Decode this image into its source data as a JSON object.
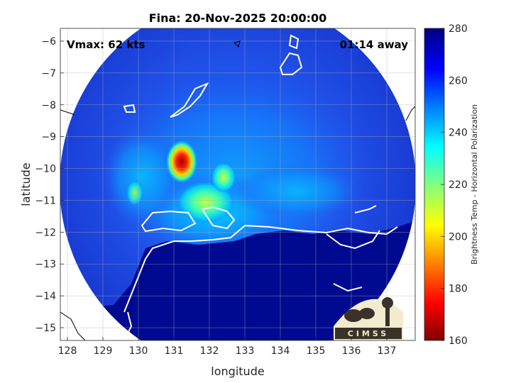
{
  "chart_data": {
    "type": "heatmap",
    "title": "Fina: 20-Nov-2025 20:00:00",
    "xlabel": "longitude",
    "ylabel": "latitude",
    "xlim": [
      127.8,
      137.8
    ],
    "ylim": [
      -15.4,
      -5.6
    ],
    "x_ticks": [
      128,
      129,
      130,
      131,
      132,
      133,
      134,
      135,
      136,
      137
    ],
    "y_ticks": [
      -6,
      -7,
      -8,
      -9,
      -10,
      -11,
      -12,
      -13,
      -14,
      -15
    ],
    "grid": true,
    "annotations": {
      "left": "Vmax: 62 kts",
      "right": "01:14 away"
    },
    "colorbar": {
      "label": "Brightness Temp - Horizontal Polarization",
      "range": [
        160,
        280
      ],
      "ticks": [
        160,
        180,
        200,
        220,
        240,
        260,
        280
      ]
    },
    "swath_center": [
      132.8,
      -10.6
    ],
    "features": [
      {
        "type": "warm-core",
        "lon": 131.2,
        "lat": -9.8,
        "value": 185
      },
      {
        "type": "convection",
        "lon": 132.0,
        "lat": -10.9,
        "value": 222
      },
      {
        "type": "convection",
        "lon": 132.4,
        "lat": -10.0,
        "value": 225
      },
      {
        "type": "land",
        "lon": 133.0,
        "lat": -13.5,
        "value": 275
      }
    ],
    "logo": "CIMSS"
  }
}
